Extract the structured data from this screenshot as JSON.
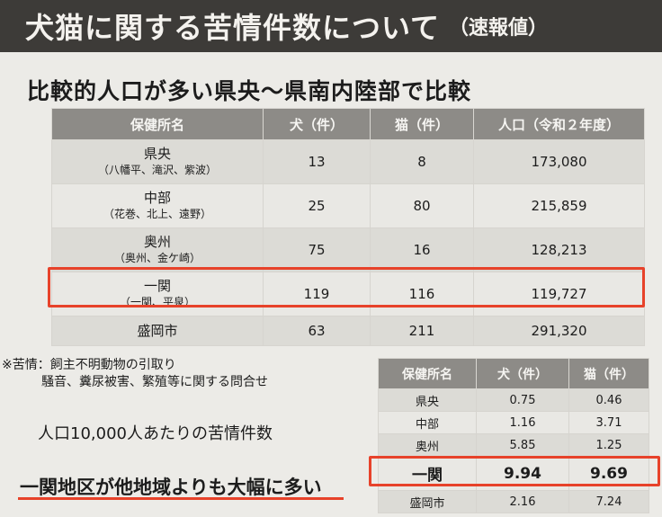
{
  "header": {
    "title": "犬猫に関する苦情件数について",
    "subtitle": "（速報値）"
  },
  "section_heading": "比較的人口が多い県央〜県南内陸部で比較",
  "main_table": {
    "headers": [
      "保健所名",
      "犬（件）",
      "猫（件）",
      "人口（令和２年度）"
    ],
    "rows": [
      {
        "name": "県央",
        "sub": "（八幡平、滝沢、紫波）",
        "dog": "13",
        "cat": "8",
        "population": "173,080"
      },
      {
        "name": "中部",
        "sub": "（花巻、北上、遠野）",
        "dog": "25",
        "cat": "80",
        "population": "215,859"
      },
      {
        "name": "奥州",
        "sub": "（奥州、金ケ崎）",
        "dog": "75",
        "cat": "16",
        "population": "128,213"
      },
      {
        "name": "一関",
        "sub": "（一関、平泉）",
        "dog": "119",
        "cat": "116",
        "population": "119,727"
      },
      {
        "name": "盛岡市",
        "sub": "",
        "dog": "63",
        "cat": "211",
        "population": "291,320"
      }
    ]
  },
  "note": {
    "line1": "※苦情：飼主不明動物の引取り",
    "line2": "騒音、糞尿被害、繁殖等に関する問合せ"
  },
  "per_capita_label": "人口10,000人あたりの苦情件数",
  "conclusion": "一関地区が他地域よりも大幅に多い",
  "small_table": {
    "headers": [
      "保健所名",
      "犬（件）",
      "猫（件）"
    ],
    "rows": [
      {
        "name": "県央",
        "dog": "0.75",
        "cat": "0.46"
      },
      {
        "name": "中部",
        "dog": "1.16",
        "cat": "3.71"
      },
      {
        "name": "奥州",
        "dog": "5.85",
        "cat": "1.25"
      },
      {
        "name": "一関",
        "dog": "9.94",
        "cat": "9.69"
      },
      {
        "name": "盛岡市",
        "dog": "2.16",
        "cat": "7.24"
      }
    ]
  },
  "colors": {
    "highlight": "#e7422a",
    "header_bg": "#8d8b87",
    "title_bg": "#3d3b38"
  }
}
